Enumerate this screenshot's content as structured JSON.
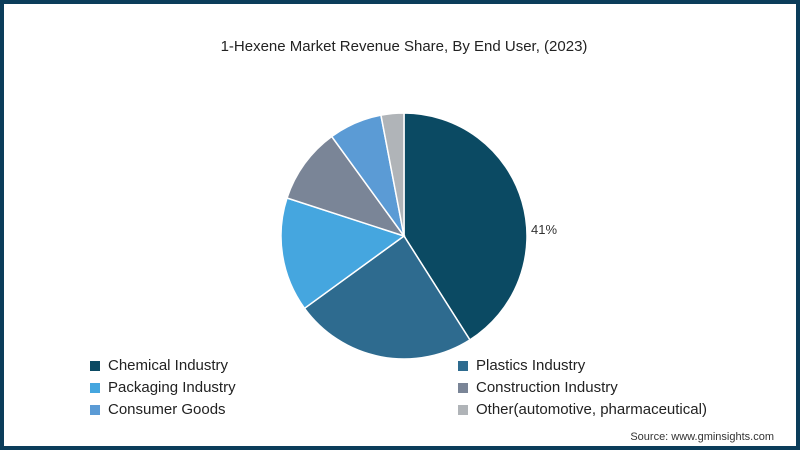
{
  "chart_data": {
    "type": "pie",
    "title": "1-Hexene  Market Revenue Share, By End User, (2023)",
    "categories": [
      "Chemical Industry",
      "Plastics Industry",
      "Packaging Industry",
      "Construction Industry",
      "Consumer Goods",
      "Other(automotive, pharmaceutical)"
    ],
    "values": [
      41,
      24,
      15,
      10,
      7,
      3
    ],
    "colors": [
      "#0b4a63",
      "#2e6b8f",
      "#45a6df",
      "#7a8597",
      "#5b9bd5",
      "#b0b4b8"
    ],
    "data_labels": [
      {
        "category": "Chemical Industry",
        "label": "41%"
      }
    ],
    "legend_position": "bottom",
    "start_angle": 0,
    "direction": "clockwise"
  },
  "header": {
    "title": "1-Hexene  Market Revenue Share, By End User, (2023)"
  },
  "slice_label": "41%",
  "legend": {
    "items": [
      {
        "label": "Chemical Industry",
        "color": "#0b4a63"
      },
      {
        "label": "Plastics Industry",
        "color": "#2e6b8f"
      },
      {
        "label": "Packaging Industry",
        "color": "#45a6df"
      },
      {
        "label": "Construction Industry",
        "color": "#7a8597"
      },
      {
        "label": "Consumer Goods",
        "color": "#5b9bd5"
      },
      {
        "label": "Other(automotive, pharmaceutical)",
        "color": "#b0b4b8"
      }
    ]
  },
  "footer": {
    "source": "Source: www.gminsights.com"
  }
}
